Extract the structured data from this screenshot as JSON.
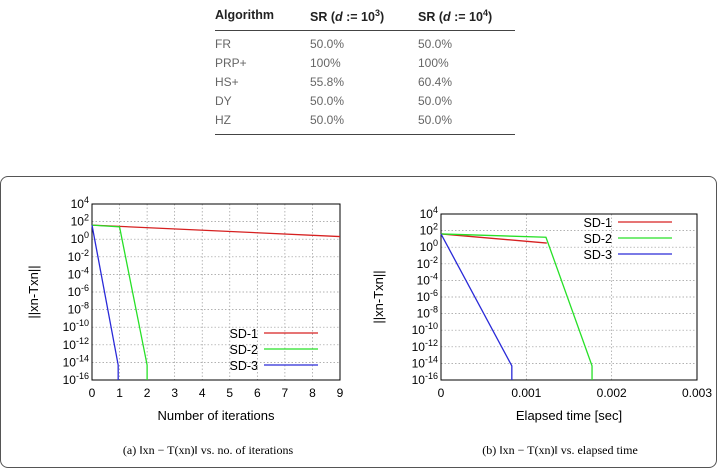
{
  "table": {
    "headers": [
      "Algorithm",
      "SR (",
      "d",
      " := 10",
      "3",
      ")",
      "SR (",
      "d",
      " := 10",
      "4",
      ")"
    ],
    "rows": [
      {
        "alg": "FR",
        "sr3": "50.0%",
        "sr4": "50.0%"
      },
      {
        "alg": "PRP+",
        "sr3": "100%",
        "sr4": "100%"
      },
      {
        "alg": "HS+",
        "sr3": "55.8%",
        "sr4": "60.4%"
      },
      {
        "alg": "DY",
        "sr3": "50.0%",
        "sr4": "50.0%"
      },
      {
        "alg": "HZ",
        "sr3": "50.0%",
        "sr4": "50.0%"
      }
    ]
  },
  "colors": {
    "sd1": "#d62020",
    "sd2": "#27e027",
    "sd3": "#2a2ad8"
  },
  "chart_data": [
    {
      "type": "line",
      "xlabel": "Number of iterations",
      "ylabel": "||xn-Txn||",
      "xlim": [
        0,
        9
      ],
      "ylim_log10": [
        -16,
        4
      ],
      "y_scale": "log",
      "x_ticks": [
        "0",
        "1",
        "2",
        "3",
        "4",
        "5",
        "6",
        "7",
        "8",
        "9"
      ],
      "y_tick_exponents": [
        4,
        2,
        0,
        -2,
        -4,
        -6,
        -8,
        -10,
        -12,
        -14,
        -16
      ],
      "grid": true,
      "legend_position": "bottom-right",
      "caption": "(a) ‖xn − T(xn)‖ vs. no. of iterations",
      "series": [
        {
          "name": "SD-1",
          "x": [
            0,
            9
          ],
          "y_log10": [
            1.6,
            0.3
          ]
        },
        {
          "name": "SD-2",
          "x": [
            0,
            1,
            2,
            2
          ],
          "y_log10": [
            1.6,
            1.4,
            -14.3,
            -16
          ]
        },
        {
          "name": "SD-3",
          "x": [
            0,
            0.95,
            0.95
          ],
          "y_log10": [
            1.6,
            -14.3,
            -16
          ]
        }
      ]
    },
    {
      "type": "line",
      "xlabel": "Elapsed time [sec]",
      "ylabel": "||xn-Txn||",
      "xlim": [
        0,
        0.003
      ],
      "ylim_log10": [
        -16,
        4
      ],
      "y_scale": "log",
      "x_ticks": [
        "0",
        "0.001",
        "0.002",
        "0.003"
      ],
      "y_tick_exponents": [
        4,
        2,
        0,
        -2,
        -4,
        -6,
        -8,
        -10,
        -12,
        -14,
        -16
      ],
      "grid": true,
      "legend_position": "top-right",
      "caption": "(b) ‖xn − T(xn)‖ vs. elapsed time",
      "series": [
        {
          "name": "SD-1",
          "x": [
            0,
            0.00124
          ],
          "y_log10": [
            1.6,
            0.5
          ]
        },
        {
          "name": "SD-2",
          "x": [
            0,
            0.00123,
            0.00177,
            0.00177
          ],
          "y_log10": [
            1.6,
            1.2,
            -14.3,
            -16
          ]
        },
        {
          "name": "SD-3",
          "x": [
            0,
            0.00083,
            0.00083
          ],
          "y_log10": [
            1.6,
            -14.3,
            -16
          ]
        }
      ]
    }
  ]
}
